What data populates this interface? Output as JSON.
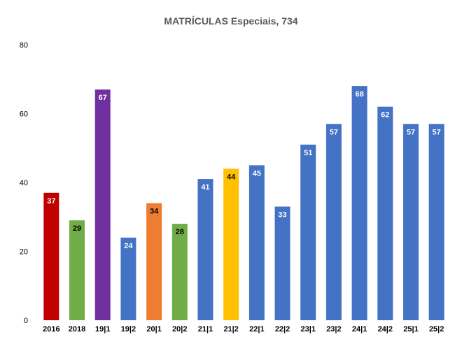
{
  "chart_data": {
    "type": "bar",
    "title": "MATRÍCULAS Especiais, 734",
    "xlabel": "",
    "ylabel": "",
    "ylim": [
      0,
      80
    ],
    "yticks": [
      0,
      20,
      40,
      60,
      80
    ],
    "grid": false,
    "legend": "none",
    "categories": [
      "2016",
      "2018",
      "19|1",
      "19|2",
      "20|1",
      "20|2",
      "21|1",
      "21|2",
      "22|1",
      "22|2",
      "23|1",
      "23|2",
      "24|1",
      "24|2",
      "25|1",
      "25|2"
    ],
    "values": [
      37,
      29,
      67,
      24,
      34,
      28,
      41,
      44,
      45,
      33,
      51,
      57,
      68,
      62,
      57,
      57
    ],
    "colors": [
      "#c00000",
      "#70ad47",
      "#7030a0",
      "#4472c4",
      "#ed7d31",
      "#70ad47",
      "#4472c4",
      "#ffc000",
      "#4472c4",
      "#4472c4",
      "#4472c4",
      "#4472c4",
      "#4472c4",
      "#4472c4",
      "#4472c4",
      "#4472c4"
    ],
    "label_colors": [
      "#ffffff",
      "#000000",
      "#ffffff",
      "#ffffff",
      "#000000",
      "#000000",
      "#ffffff",
      "#000000",
      "#ffffff",
      "#ffffff",
      "#ffffff",
      "#ffffff",
      "#ffffff",
      "#ffffff",
      "#ffffff",
      "#ffffff"
    ]
  }
}
